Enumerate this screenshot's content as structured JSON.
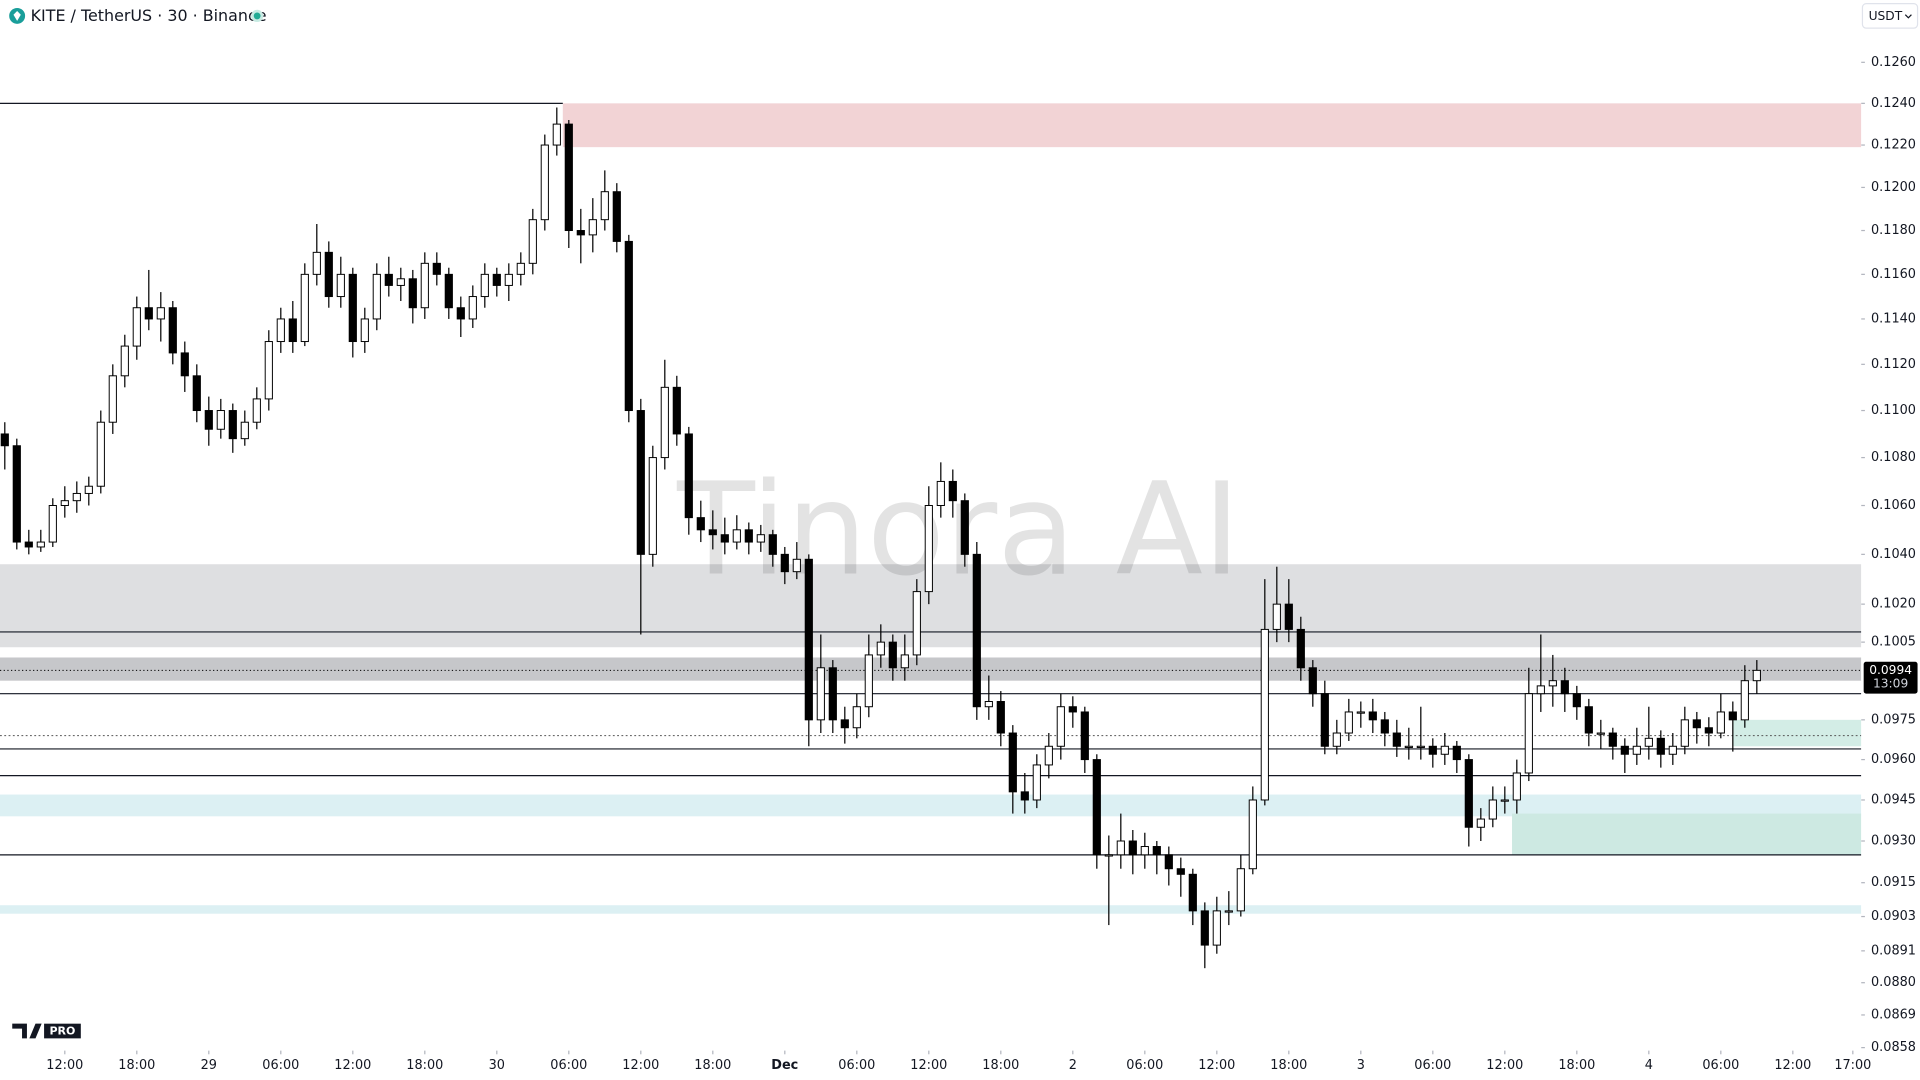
{
  "chart_data": {
    "type": "candlestick",
    "header": "KITE / TetherUS · 30 · Binance",
    "currency": "USDT",
    "watermark": "Tinora AI",
    "logo_badge": "PRO",
    "log_scale": true,
    "up_color": "#ffffff",
    "down_color": "#000000",
    "edge_color": "#000000",
    "xlim": [
      -0.4,
      154.7
    ],
    "ylim": [
      0.0857,
      0.1291
    ],
    "yticks": [
      {
        "value": 0.126,
        "label": "0.1260"
      },
      {
        "value": 0.124,
        "label": "0.1240"
      },
      {
        "value": 0.122,
        "label": "0.1220"
      },
      {
        "value": 0.12,
        "label": "0.1200"
      },
      {
        "value": 0.118,
        "label": "0.1180"
      },
      {
        "value": 0.116,
        "label": "0.1160"
      },
      {
        "value": 0.114,
        "label": "0.1140"
      },
      {
        "value": 0.112,
        "label": "0.1120"
      },
      {
        "value": 0.11,
        "label": "0.1100"
      },
      {
        "value": 0.108,
        "label": "0.1080"
      },
      {
        "value": 0.106,
        "label": "0.1060"
      },
      {
        "value": 0.104,
        "label": "0.1040"
      },
      {
        "value": 0.102,
        "label": "0.1020"
      },
      {
        "value": 0.1005,
        "label": "0.1005"
      },
      {
        "value": 0.0975,
        "label": "0.0975"
      },
      {
        "value": 0.096,
        "label": "0.0960"
      },
      {
        "value": 0.0945,
        "label": "0.0945"
      },
      {
        "value": 0.093,
        "label": "0.0930"
      },
      {
        "value": 0.0915,
        "label": "0.0915"
      },
      {
        "value": 0.0903,
        "label": "0.0903"
      },
      {
        "value": 0.0891,
        "label": "0.0891"
      },
      {
        "value": 0.088,
        "label": "0.0880"
      },
      {
        "value": 0.0869,
        "label": "0.0869"
      },
      {
        "value": 0.0858,
        "label": "0.0858"
      }
    ],
    "xticks": [
      {
        "value": 5,
        "label": "12:00"
      },
      {
        "value": 11,
        "label": "18:00"
      },
      {
        "value": 17,
        "label": "29"
      },
      {
        "value": 23,
        "label": "06:00"
      },
      {
        "value": 29,
        "label": "12:00"
      },
      {
        "value": 35,
        "label": "18:00"
      },
      {
        "value": 41,
        "label": "30"
      },
      {
        "value": 47,
        "label": "06:00"
      },
      {
        "value": 53,
        "label": "12:00"
      },
      {
        "value": 59,
        "label": "18:00"
      },
      {
        "value": 65,
        "label": "Dec"
      },
      {
        "value": 71,
        "label": "06:00"
      },
      {
        "value": 77,
        "label": "12:00"
      },
      {
        "value": 83,
        "label": "18:00"
      },
      {
        "value": 89,
        "label": "2"
      },
      {
        "value": 95,
        "label": "06:00"
      },
      {
        "value": 101,
        "label": "12:00"
      },
      {
        "value": 107,
        "label": "18:00"
      },
      {
        "value": 113,
        "label": "3"
      },
      {
        "value": 119,
        "label": "06:00"
      },
      {
        "value": 125,
        "label": "12:00"
      },
      {
        "value": 131,
        "label": "18:00"
      },
      {
        "value": 137,
        "label": "4"
      },
      {
        "value": 143,
        "label": "06:00"
      },
      {
        "value": 149,
        "label": "12:00"
      },
      {
        "value": 154,
        "label": "17:00"
      }
    ],
    "last_price": {
      "value": 0.0994,
      "label": "0.0994"
    },
    "countdown": "13:09",
    "zones": [
      {
        "from": 0.1219,
        "to": 0.124,
        "start": 46.5,
        "color": "#f2d3d5"
      },
      {
        "from": 0.1003,
        "to": 0.1036,
        "color": "#dedfe1"
      },
      {
        "from": 0.099,
        "to": 0.0999,
        "color": "#c6c7ca"
      },
      {
        "from": 0.0939,
        "to": 0.0947,
        "color": "#dcf0f3"
      },
      {
        "from": 0.0904,
        "to": 0.0907,
        "color": "#dcf0f3"
      },
      {
        "from": 0.0925,
        "to": 0.094,
        "start": 125.6,
        "color": "#cde9e2"
      },
      {
        "from": 0.0965,
        "to": 0.0975,
        "start": 144,
        "color": "#d3ede6"
      }
    ],
    "hlines": [
      {
        "price": 0.124,
        "end": 46.5
      },
      {
        "price": 0.1009
      },
      {
        "price": 0.0985
      },
      {
        "price": 0.0964
      },
      {
        "price": 0.0954
      },
      {
        "price": 0.0925
      }
    ],
    "dotted_lines": [
      0.0969
    ],
    "candles": [
      [
        0.109,
        0.1095,
        0.1075,
        0.1085
      ],
      [
        0.1085,
        0.1088,
        0.1042,
        0.1045
      ],
      [
        0.1045,
        0.105,
        0.104,
        0.1043
      ],
      [
        0.1043,
        0.105,
        0.1041,
        0.1045
      ],
      [
        0.1045,
        0.1063,
        0.1043,
        0.106
      ],
      [
        0.106,
        0.1068,
        0.1055,
        0.1062
      ],
      [
        0.1062,
        0.107,
        0.1057,
        0.1065
      ],
      [
        0.1065,
        0.1072,
        0.106,
        0.1068
      ],
      [
        0.1068,
        0.11,
        0.1065,
        0.1095
      ],
      [
        0.1095,
        0.112,
        0.109,
        0.1115
      ],
      [
        0.1115,
        0.1133,
        0.111,
        0.1128
      ],
      [
        0.1128,
        0.115,
        0.1122,
        0.1145
      ],
      [
        0.1145,
        0.1162,
        0.1135,
        0.114
      ],
      [
        0.114,
        0.1152,
        0.113,
        0.1145
      ],
      [
        0.1145,
        0.1148,
        0.112,
        0.1125
      ],
      [
        0.1125,
        0.113,
        0.1108,
        0.1115
      ],
      [
        0.1115,
        0.112,
        0.1095,
        0.11
      ],
      [
        0.11,
        0.1106,
        0.1085,
        0.1092
      ],
      [
        0.1092,
        0.1105,
        0.1088,
        0.11
      ],
      [
        0.11,
        0.1103,
        0.1082,
        0.1088
      ],
      [
        0.1088,
        0.11,
        0.1085,
        0.1095
      ],
      [
        0.1095,
        0.111,
        0.1092,
        0.1105
      ],
      [
        0.1105,
        0.1135,
        0.11,
        0.113
      ],
      [
        0.113,
        0.1145,
        0.1125,
        0.114
      ],
      [
        0.114,
        0.1148,
        0.1125,
        0.113
      ],
      [
        0.113,
        0.1165,
        0.1128,
        0.116
      ],
      [
        0.116,
        0.1183,
        0.1155,
        0.117
      ],
      [
        0.117,
        0.1175,
        0.1145,
        0.115
      ],
      [
        0.115,
        0.1168,
        0.1145,
        0.116
      ],
      [
        0.116,
        0.1163,
        0.1123,
        0.113
      ],
      [
        0.113,
        0.1145,
        0.1125,
        0.114
      ],
      [
        0.114,
        0.1165,
        0.1135,
        0.116
      ],
      [
        0.116,
        0.1168,
        0.115,
        0.1155
      ],
      [
        0.1155,
        0.1163,
        0.1148,
        0.1158
      ],
      [
        0.1158,
        0.1162,
        0.1138,
        0.1145
      ],
      [
        0.1145,
        0.117,
        0.114,
        0.1165
      ],
      [
        0.1165,
        0.117,
        0.1155,
        0.116
      ],
      [
        0.116,
        0.1163,
        0.114,
        0.1145
      ],
      [
        0.1145,
        0.115,
        0.1132,
        0.114
      ],
      [
        0.114,
        0.1155,
        0.1136,
        0.115
      ],
      [
        0.115,
        0.1165,
        0.1145,
        0.116
      ],
      [
        0.116,
        0.1163,
        0.115,
        0.1155
      ],
      [
        0.1155,
        0.1165,
        0.1148,
        0.116
      ],
      [
        0.116,
        0.117,
        0.1155,
        0.1165
      ],
      [
        0.1165,
        0.119,
        0.116,
        0.1185
      ],
      [
        0.1185,
        0.1225,
        0.118,
        0.122
      ],
      [
        0.122,
        0.1238,
        0.1215,
        0.123
      ],
      [
        0.123,
        0.1232,
        0.1172,
        0.118
      ],
      [
        0.118,
        0.119,
        0.1165,
        0.1178
      ],
      [
        0.1178,
        0.1195,
        0.117,
        0.1185
      ],
      [
        0.1185,
        0.1208,
        0.118,
        0.1198
      ],
      [
        0.1198,
        0.1202,
        0.117,
        0.1175
      ],
      [
        0.1175,
        0.1178,
        0.1095,
        0.11
      ],
      [
        0.11,
        0.1105,
        0.1008,
        0.104
      ],
      [
        0.104,
        0.1085,
        0.1035,
        0.108
      ],
      [
        0.108,
        0.1122,
        0.1075,
        0.111
      ],
      [
        0.111,
        0.1115,
        0.1085,
        0.109
      ],
      [
        0.109,
        0.1093,
        0.1048,
        0.1055
      ],
      [
        0.1055,
        0.1062,
        0.1045,
        0.105
      ],
      [
        0.105,
        0.1058,
        0.1042,
        0.1048
      ],
      [
        0.1048,
        0.1055,
        0.104,
        0.1045
      ],
      [
        0.1045,
        0.1056,
        0.1042,
        0.105
      ],
      [
        0.105,
        0.1053,
        0.104,
        0.1045
      ],
      [
        0.1045,
        0.1052,
        0.1041,
        0.1048
      ],
      [
        0.1048,
        0.105,
        0.1035,
        0.104
      ],
      [
        0.104,
        0.1043,
        0.1028,
        0.1033
      ],
      [
        0.1033,
        0.1045,
        0.103,
        0.1038
      ],
      [
        0.1038,
        0.104,
        0.0965,
        0.0975
      ],
      [
        0.0975,
        0.1008,
        0.097,
        0.0995
      ],
      [
        0.0995,
        0.0998,
        0.097,
        0.0975
      ],
      [
        0.0975,
        0.098,
        0.0966,
        0.0972
      ],
      [
        0.0972,
        0.0985,
        0.0968,
        0.098
      ],
      [
        0.098,
        0.1008,
        0.0976,
        0.1
      ],
      [
        0.1,
        0.1012,
        0.0995,
        0.1005
      ],
      [
        0.1005,
        0.1008,
        0.099,
        0.0995
      ],
      [
        0.0995,
        0.1008,
        0.099,
        0.1
      ],
      [
        0.1,
        0.103,
        0.0996,
        0.1025
      ],
      [
        0.1025,
        0.1068,
        0.102,
        0.106
      ],
      [
        0.106,
        0.1078,
        0.1055,
        0.107
      ],
      [
        0.107,
        0.1075,
        0.1055,
        0.1062
      ],
      [
        0.1062,
        0.1065,
        0.1035,
        0.104
      ],
      [
        0.104,
        0.1045,
        0.0975,
        0.098
      ],
      [
        0.098,
        0.0992,
        0.0975,
        0.0982
      ],
      [
        0.0982,
        0.0986,
        0.0965,
        0.097
      ],
      [
        0.097,
        0.0973,
        0.094,
        0.0948
      ],
      [
        0.0948,
        0.0955,
        0.094,
        0.0945
      ],
      [
        0.0945,
        0.0962,
        0.0942,
        0.0958
      ],
      [
        0.0958,
        0.097,
        0.0953,
        0.0965
      ],
      [
        0.0965,
        0.0985,
        0.096,
        0.098
      ],
      [
        0.098,
        0.0984,
        0.0972,
        0.0978
      ],
      [
        0.0978,
        0.098,
        0.0955,
        0.096
      ],
      [
        0.096,
        0.0962,
        0.092,
        0.0925
      ],
      [
        0.0925,
        0.0932,
        0.09,
        0.0925
      ],
      [
        0.0925,
        0.094,
        0.092,
        0.093
      ],
      [
        0.093,
        0.0934,
        0.0918,
        0.0925
      ],
      [
        0.0925,
        0.0933,
        0.092,
        0.0928
      ],
      [
        0.0928,
        0.093,
        0.0918,
        0.0925
      ],
      [
        0.0925,
        0.0928,
        0.0914,
        0.092
      ],
      [
        0.092,
        0.0924,
        0.091,
        0.0918
      ],
      [
        0.0918,
        0.092,
        0.09,
        0.0905
      ],
      [
        0.0905,
        0.0908,
        0.0885,
        0.0893
      ],
      [
        0.0893,
        0.091,
        0.089,
        0.0905
      ],
      [
        0.0905,
        0.0912,
        0.09,
        0.0905
      ],
      [
        0.0905,
        0.0925,
        0.0903,
        0.092
      ],
      [
        0.092,
        0.095,
        0.0918,
        0.0945
      ],
      [
        0.0945,
        0.103,
        0.0943,
        0.101
      ],
      [
        0.101,
        0.1035,
        0.1005,
        0.102
      ],
      [
        0.102,
        0.103,
        0.1005,
        0.101
      ],
      [
        0.101,
        0.1015,
        0.099,
        0.0995
      ],
      [
        0.0995,
        0.0998,
        0.098,
        0.0985
      ],
      [
        0.0985,
        0.099,
        0.0962,
        0.0965
      ],
      [
        0.0965,
        0.0975,
        0.0962,
        0.097
      ],
      [
        0.097,
        0.0983,
        0.0967,
        0.0978
      ],
      [
        0.0978,
        0.0982,
        0.0972,
        0.0978
      ],
      [
        0.0978,
        0.0983,
        0.097,
        0.0975
      ],
      [
        0.0975,
        0.0978,
        0.0965,
        0.097
      ],
      [
        0.097,
        0.0975,
        0.0961,
        0.0965
      ],
      [
        0.0965,
        0.0972,
        0.096,
        0.0965
      ],
      [
        0.0965,
        0.098,
        0.096,
        0.0965
      ],
      [
        0.0965,
        0.0968,
        0.0957,
        0.0962
      ],
      [
        0.0962,
        0.097,
        0.0958,
        0.0965
      ],
      [
        0.0965,
        0.0967,
        0.0955,
        0.096
      ],
      [
        0.096,
        0.0962,
        0.0928,
        0.0935
      ],
      [
        0.0935,
        0.0942,
        0.093,
        0.0938
      ],
      [
        0.0938,
        0.095,
        0.0935,
        0.0945
      ],
      [
        0.0945,
        0.095,
        0.094,
        0.0945
      ],
      [
        0.0945,
        0.096,
        0.094,
        0.0955
      ],
      [
        0.0955,
        0.0995,
        0.0952,
        0.0985
      ],
      [
        0.0985,
        0.1008,
        0.0978,
        0.0988
      ],
      [
        0.0988,
        0.1,
        0.098,
        0.099
      ],
      [
        0.099,
        0.0995,
        0.0978,
        0.0985
      ],
      [
        0.0985,
        0.0988,
        0.0975,
        0.098
      ],
      [
        0.098,
        0.0983,
        0.0965,
        0.097
      ],
      [
        0.097,
        0.0975,
        0.0964,
        0.097
      ],
      [
        0.097,
        0.0972,
        0.096,
        0.0965
      ],
      [
        0.0965,
        0.0968,
        0.0955,
        0.0962
      ],
      [
        0.0962,
        0.0972,
        0.0958,
        0.0965
      ],
      [
        0.0965,
        0.098,
        0.096,
        0.0968
      ],
      [
        0.0968,
        0.0971,
        0.0957,
        0.0962
      ],
      [
        0.0962,
        0.097,
        0.0958,
        0.0965
      ],
      [
        0.0965,
        0.098,
        0.0962,
        0.0975
      ],
      [
        0.0975,
        0.0978,
        0.0966,
        0.0972
      ],
      [
        0.0972,
        0.0976,
        0.0965,
        0.097
      ],
      [
        0.097,
        0.0985,
        0.0968,
        0.0978
      ],
      [
        0.0978,
        0.0982,
        0.0963,
        0.0975
      ],
      [
        0.0975,
        0.0996,
        0.0972,
        0.099
      ],
      [
        0.099,
        0.0998,
        0.0985,
        0.0994
      ]
    ]
  }
}
